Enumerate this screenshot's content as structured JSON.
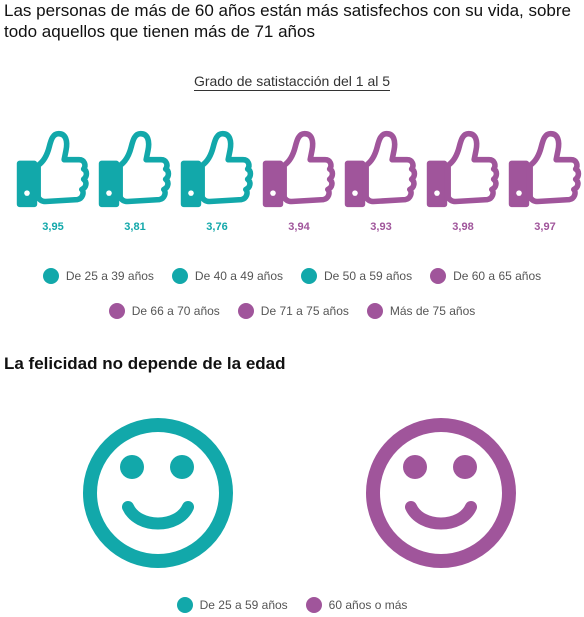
{
  "headline": "Las personas de más de 60 años están más satisfechos con su vida, sobre todo aquellos que tienen más de 71 años",
  "chart_data": [
    {
      "type": "bar",
      "title": "Grado de satistacción del 1 al 5",
      "categories": [
        "De 25 a 39 años",
        "De 40 a 49 años",
        "De 50 a 59 años",
        "De 60 a 65 años",
        "De 66 a 70 años",
        "De 71 a 75 años",
        "Más de 75 años"
      ],
      "values": [
        3.95,
        3.81,
        3.76,
        3.94,
        3.93,
        3.98,
        3.97
      ],
      "value_labels": [
        "3,95",
        "3,81",
        "3,76",
        "3,94",
        "3,93",
        "3,98",
        "3,97"
      ],
      "colors": [
        "#12a8aa",
        "#12a8aa",
        "#12a8aa",
        "#a0559b",
        "#a0559b",
        "#a0559b",
        "#a0559b"
      ],
      "legend_position": "bottom",
      "grid": false
    }
  ],
  "section2": {
    "title": "La felicidad no depende de la edad",
    "icon": "smiley-face-icon",
    "legend": [
      {
        "label": "De 25 a 59 años",
        "color": "#12a8aa"
      },
      {
        "label": "60 años o más",
        "color": "#a0559b"
      }
    ]
  },
  "colors": {
    "teal": "#12a8aa",
    "purple": "#a0559b",
    "text": "#111111",
    "legend_text": "#555555"
  },
  "icons": {
    "thumb": "thumbs-up-icon",
    "legend_dot": "circle-dot-icon"
  }
}
